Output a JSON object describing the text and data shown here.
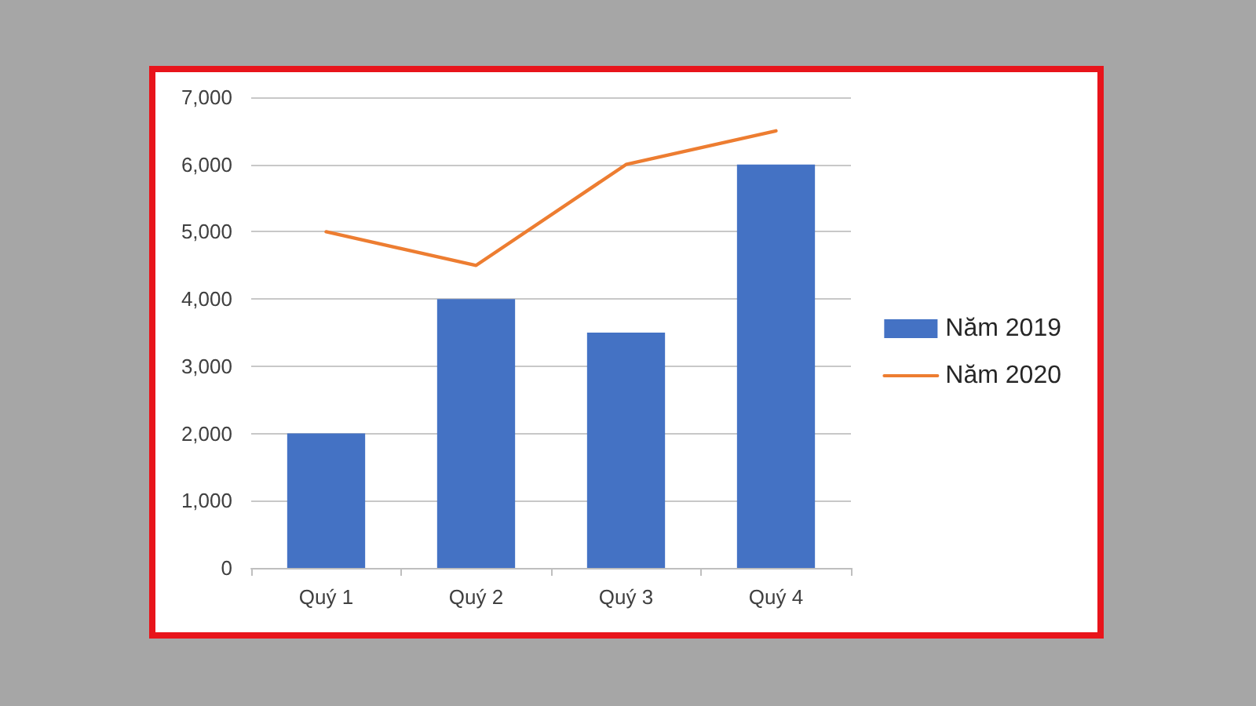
{
  "chart_data": {
    "type": "bar",
    "categories": [
      "Quý 1",
      "Quý 2",
      "Quý 3",
      "Quý 4"
    ],
    "series": [
      {
        "name": "Năm 2019",
        "color": "#4472c4",
        "values": [
          2000,
          4000,
          3500,
          6000
        ]
      },
      {
        "name": "Năm 2020",
        "type": "line",
        "color": "#ed7d31",
        "values": [
          5000,
          4500,
          6000,
          6500
        ]
      }
    ],
    "ylim": [
      0,
      7000
    ],
    "yticks": [
      0,
      {
        "value": 1000,
        "label": "1,000"
      },
      {
        "value": 2000,
        "label": "2,000"
      },
      {
        "value": 3000,
        "label": "3,000"
      },
      {
        "value": 4000,
        "label": "4,000"
      },
      {
        "value": 5000,
        "label": "5,000"
      },
      {
        "value": 6000,
        "label": "6,000"
      },
      {
        "value": 7000,
        "label": "7,000"
      }
    ],
    "grid": "y",
    "legend": "right",
    "marker": "none",
    "line_style": "solid"
  }
}
